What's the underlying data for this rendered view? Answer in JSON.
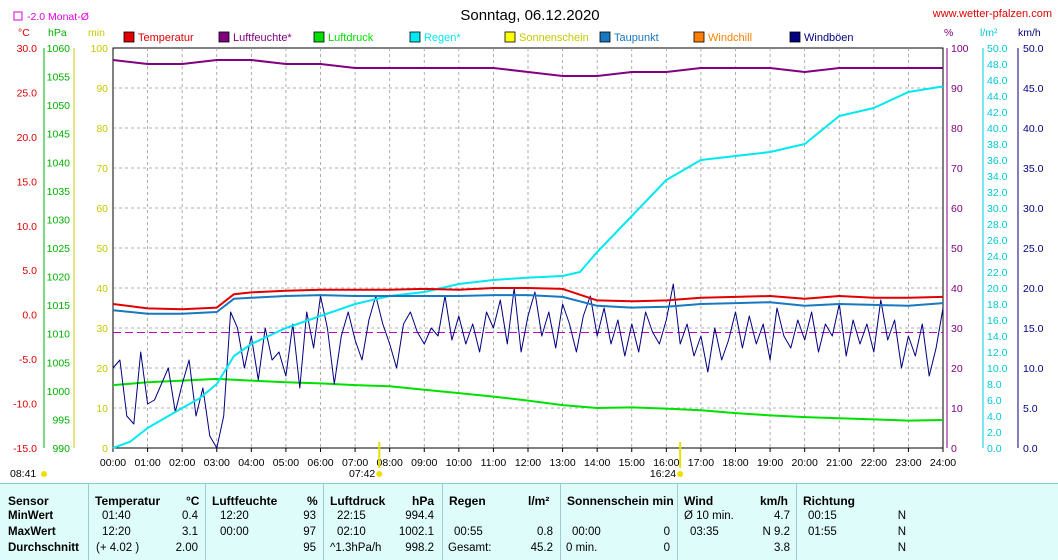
{
  "header": {
    "title": "Sonntag, 06.12.2020",
    "site": "www.wetter-pfalzen.com",
    "month_avg_label": "-2.0 Monat-Ø",
    "unit_temp": "°C",
    "unit_hpa": "hPa",
    "unit_min": "min",
    "unit_pct": "%",
    "unit_lm2": "l/m²",
    "unit_kmh": "km/h",
    "sunrise": "08:41",
    "noon_marker": "07:42",
    "sunset": "16:24"
  },
  "legend": [
    {
      "label": "Temperatur",
      "color": "#E00000"
    },
    {
      "label": "Luftfeuchte*",
      "color": "#800080"
    },
    {
      "label": "Luftdruck",
      "color": "#00E000"
    },
    {
      "label": "Regen*",
      "color": "#00E8F0"
    },
    {
      "label": "Sonnenschein",
      "color": "#FFFF00"
    },
    {
      "label": "Taupunkt",
      "color": "#1878C0"
    },
    {
      "label": "Windchill",
      "color": "#FF8000"
    },
    {
      "label": "Windböen",
      "color": "#000080"
    }
  ],
  "chart_data": {
    "type": "line",
    "title": "Sonntag, 06.12.2020",
    "x_ticks": [
      "00:00",
      "01:00",
      "02:00",
      "03:00",
      "04:00",
      "05:00",
      "06:00",
      "07:00",
      "08:00",
      "09:00",
      "10:00",
      "11:00",
      "12:00",
      "13:00",
      "14:00",
      "15:00",
      "16:00",
      "17:00",
      "18:00",
      "19:00",
      "20:00",
      "21:00",
      "22:00",
      "23:00",
      "24:00"
    ],
    "axes": {
      "temp": {
        "unit": "°C",
        "min": -15,
        "max": 30,
        "ticks": [
          "30.0",
          "25.0",
          "20.0",
          "15.0",
          "10.0",
          "5.0",
          "0.0",
          "-5.0",
          "-10.0",
          "-15.0"
        ]
      },
      "pressure": {
        "unit": "hPa",
        "min": 990,
        "max": 1060,
        "ticks": [
          "1060",
          "1055",
          "1050",
          "1045",
          "1040",
          "1035",
          "1030",
          "1025",
          "1020",
          "1015",
          "1010",
          "1005",
          "1000",
          "995",
          "990"
        ]
      },
      "sun_min": {
        "unit": "min",
        "min": 0,
        "max": 100,
        "ticks": [
          "100",
          "90",
          "80",
          "70",
          "60",
          "50",
          "40",
          "30",
          "20",
          "10",
          "0"
        ]
      },
      "humidity": {
        "unit": "%",
        "min": 0,
        "max": 100,
        "ticks": [
          "100",
          "90",
          "80",
          "70",
          "60",
          "50",
          "40",
          "30",
          "20",
          "10",
          "0"
        ]
      },
      "rain": {
        "unit": "l/m²",
        "min": 0,
        "max": 50,
        "ticks": [
          "50.0",
          "48.0",
          "46.0",
          "44.0",
          "42.0",
          "40.0",
          "38.0",
          "36.0",
          "34.0",
          "32.0",
          "30.0",
          "28.0",
          "26.0",
          "24.0",
          "22.0",
          "20.0",
          "18.0",
          "16.0",
          "14.0",
          "12.0",
          "10.0",
          "8.0",
          "6.0",
          "4.0",
          "2.0",
          "0.0"
        ]
      },
      "wind": {
        "unit": "km/h",
        "min": 0,
        "max": 50,
        "ticks": [
          "50.0",
          "45.0",
          "40.0",
          "35.0",
          "30.0",
          "25.0",
          "20.0",
          "15.0",
          "10.0",
          "5.0",
          "0.0"
        ]
      }
    },
    "month_avg_temp": -2.0,
    "series": [
      {
        "name": "Temperatur",
        "axis": "temp",
        "color": "#E00000",
        "x": [
          0,
          1,
          2,
          3,
          3.5,
          4,
          5,
          6,
          7,
          8,
          9,
          10,
          11,
          12,
          13,
          14,
          15,
          16,
          17,
          18,
          19,
          20,
          21,
          22,
          23,
          24
        ],
        "y": [
          1.2,
          0.7,
          0.6,
          0.8,
          2.3,
          2.5,
          2.7,
          2.8,
          2.8,
          2.8,
          2.9,
          2.8,
          3.0,
          3.0,
          2.9,
          1.6,
          1.5,
          1.6,
          1.9,
          2.0,
          2.1,
          1.8,
          2.1,
          1.9,
          1.9,
          2.0
        ]
      },
      {
        "name": "Luftfeuchte*",
        "axis": "humidity",
        "color": "#800080",
        "x": [
          0,
          1,
          2,
          3,
          4,
          5,
          6,
          7,
          8,
          9,
          10,
          11,
          12,
          13,
          14,
          15,
          16,
          17,
          18,
          19,
          20,
          21,
          22,
          23,
          24
        ],
        "y": [
          97,
          96,
          96,
          97,
          97,
          96,
          96,
          95,
          95,
          95,
          95,
          95,
          94,
          93,
          93,
          94,
          94,
          95,
          95,
          95,
          94,
          95,
          95,
          95,
          95
        ]
      },
      {
        "name": "Luftdruck",
        "axis": "pressure",
        "color": "#00E000",
        "x": [
          0,
          1,
          2,
          3,
          4,
          5,
          6,
          7,
          8,
          9,
          10,
          11,
          12,
          13,
          14,
          15,
          16,
          17,
          18,
          19,
          20,
          21,
          22,
          23,
          24
        ],
        "y": [
          1001.0,
          1001.5,
          1001.8,
          1002.1,
          1001.8,
          1001.5,
          1001.3,
          1001.0,
          1000.8,
          1000.2,
          999.6,
          999.0,
          998.3,
          997.5,
          997.0,
          997.1,
          996.9,
          996.6,
          996.1,
          995.7,
          995.4,
          995.2,
          995.0,
          994.8,
          994.9
        ]
      },
      {
        "name": "Regen*",
        "axis": "rain",
        "color": "#00E8F0",
        "x": [
          0,
          0.5,
          1,
          2,
          2.5,
          3,
          3.5,
          4,
          5,
          6,
          7,
          8,
          9,
          10,
          11,
          12,
          13,
          13.5,
          14,
          15,
          16,
          17,
          18,
          19,
          20,
          21,
          22,
          23,
          24
        ],
        "y": [
          0.0,
          0.8,
          2.5,
          5.0,
          6.2,
          8.0,
          11.5,
          13.0,
          15.0,
          16.5,
          18.0,
          19.0,
          19.5,
          20.5,
          21.0,
          21.3,
          21.5,
          22.0,
          24.5,
          29.0,
          33.5,
          36.0,
          36.5,
          37.0,
          38.0,
          41.5,
          42.5,
          44.5,
          45.2
        ]
      },
      {
        "name": "Taupunkt",
        "axis": "temp",
        "color": "#1878C0",
        "x": [
          0,
          1,
          2,
          3,
          3.5,
          4,
          5,
          6,
          7,
          8,
          9,
          10,
          11,
          12,
          13,
          14,
          15,
          16,
          17,
          18,
          19,
          20,
          21,
          22,
          23,
          24
        ],
        "y": [
          0.5,
          0.1,
          0.1,
          0.3,
          1.8,
          1.9,
          2.1,
          2.2,
          2.1,
          2.1,
          2.1,
          2.1,
          2.2,
          2.2,
          2.0,
          1.0,
          0.8,
          0.9,
          1.2,
          1.3,
          1.4,
          1.0,
          1.2,
          1.1,
          1.0,
          1.3
        ]
      },
      {
        "name": "Windböen",
        "axis": "wind",
        "color": "#000080",
        "x": [
          0,
          0.2,
          0.4,
          0.6,
          0.8,
          1.0,
          1.2,
          1.4,
          1.6,
          1.8,
          2.0,
          2.2,
          2.4,
          2.6,
          2.8,
          3.0,
          3.2,
          3.4,
          3.6,
          3.8,
          4.0,
          4.2,
          4.4,
          4.6,
          4.8,
          5.0,
          5.2,
          5.4,
          5.6,
          5.8,
          6.0,
          6.2,
          6.4,
          6.6,
          6.8,
          7.0,
          7.2,
          7.4,
          7.6,
          7.8,
          8.0,
          8.2,
          8.4,
          8.6,
          8.8,
          9.0,
          9.2,
          9.4,
          9.6,
          9.8,
          10.0,
          10.2,
          10.4,
          10.6,
          10.8,
          11.0,
          11.2,
          11.4,
          11.6,
          11.8,
          12.0,
          12.2,
          12.4,
          12.6,
          12.8,
          13.0,
          13.2,
          13.4,
          13.6,
          13.8,
          14.0,
          14.2,
          14.4,
          14.6,
          14.8,
          15.0,
          15.2,
          15.4,
          15.6,
          15.8,
          16.0,
          16.2,
          16.4,
          16.6,
          16.8,
          17.0,
          17.2,
          17.4,
          17.6,
          17.8,
          18.0,
          18.2,
          18.4,
          18.6,
          18.8,
          19.0,
          19.2,
          19.4,
          19.6,
          19.8,
          20.0,
          20.2,
          20.4,
          20.6,
          20.8,
          21.0,
          21.2,
          21.4,
          21.6,
          21.8,
          22.0,
          22.2,
          22.4,
          22.6,
          22.8,
          23.0,
          23.2,
          23.4,
          23.6,
          23.8,
          24.0
        ],
        "y": [
          10.0,
          11.0,
          4.0,
          3.0,
          12.0,
          5.5,
          6.0,
          8.0,
          10.0,
          4.5,
          8.0,
          11.0,
          4.0,
          7.5,
          1.5,
          0.0,
          4.0,
          17.0,
          15.0,
          10.0,
          14.0,
          8.5,
          15.0,
          11.0,
          12.0,
          9.0,
          15.5,
          7.5,
          17.0,
          12.5,
          19.0,
          15.0,
          8.0,
          14.0,
          17.0,
          13.5,
          11.0,
          16.0,
          19.0,
          15.5,
          13.0,
          10.0,
          15.5,
          17.0,
          14.5,
          13.0,
          15.0,
          14.0,
          19.0,
          13.5,
          16.5,
          13.0,
          15.5,
          12.0,
          17.0,
          15.0,
          18.5,
          13.0,
          20.0,
          12.0,
          16.5,
          19.5,
          14.0,
          17.0,
          12.5,
          18.0,
          15.5,
          12.0,
          16.5,
          19.0,
          14.0,
          17.5,
          13.0,
          16.0,
          11.5,
          15.5,
          12.0,
          17.0,
          14.5,
          13.0,
          16.0,
          20.5,
          13.0,
          15.5,
          11.5,
          14.0,
          9.5,
          15.0,
          11.0,
          13.5,
          17.0,
          12.5,
          16.5,
          13.0,
          15.5,
          11.0,
          17.5,
          14.0,
          12.5,
          16.0,
          13.5,
          17.0,
          12.0,
          15.5,
          14.0,
          18.0,
          11.5,
          16.0,
          13.0,
          15.5,
          12.0,
          18.5,
          13.5,
          16.0,
          10.0,
          14.0,
          11.5,
          15.5,
          9.0,
          12.5,
          17.5
        ]
      }
    ],
    "sun_marks": [
      {
        "x": 7.7,
        "label": "07:42"
      },
      {
        "x": 16.4,
        "label": "16:24"
      }
    ]
  },
  "stats": {
    "headers": {
      "sensor": "Sensor",
      "temp": "Temperatur",
      "temp_unit": "°C",
      "hum": "Luftfeuchte",
      "hum_unit": "%",
      "press": "Luftdruck",
      "press_unit": "hPa",
      "rain": "Regen",
      "rain_unit": "l/m²",
      "sun": "Sonnenschein min",
      "wind": "Wind",
      "wind_unit": "km/h",
      "dir": "Richtung"
    },
    "rows": [
      {
        "label": "MinWert",
        "temp_time": "01:40",
        "temp_val": "0.4",
        "hum_time": "12:20",
        "hum_val": "93",
        "press_time": "22:15",
        "press_val": "994.4",
        "rain_time": "",
        "rain_val": "",
        "sun_time": "",
        "sun_val": "",
        "wind_label": "Ø 10 min.",
        "wind_val": "4.7",
        "dir_time": "00:15",
        "dir_val": "N"
      },
      {
        "label": "MaxWert",
        "temp_time": "12:20",
        "temp_val": "3.1",
        "hum_time": "00:00",
        "hum_val": "97",
        "press_time": "02:10",
        "press_val": "1002.1",
        "rain_time": "00:55",
        "rain_val": "0.8",
        "sun_time": "00:00",
        "sun_val": "0",
        "wind_label": "03:35",
        "wind_val": "N 9.2",
        "dir_time": "01:55",
        "dir_val": "N"
      },
      {
        "label": "Durchschnitt",
        "temp_time": "(+ 4.02 )",
        "temp_val": "2.00",
        "hum_time": "",
        "hum_val": "95",
        "press_time": "^1.3hPa/h",
        "press_val": "998.2",
        "rain_time": "Gesamt:",
        "rain_val": "45.2",
        "sun_time": "0 min.",
        "sun_val": "0",
        "wind_label": "",
        "wind_val": "3.8",
        "dir_time": "",
        "dir_val": "N"
      }
    ]
  }
}
